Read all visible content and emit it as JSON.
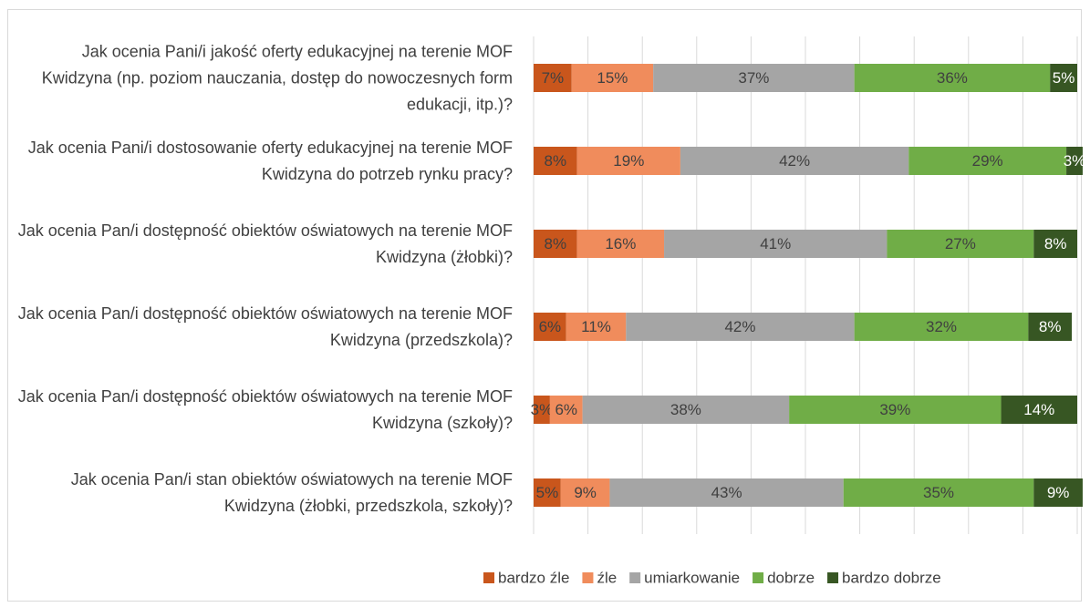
{
  "chart_data": {
    "type": "stacked-barh",
    "categories": [
      "Jak ocenia Pani/i jakość oferty edukacyjnej na terenie MOF Kwidzyna (np. poziom nauczania, dostęp do nowoczesnych form edukacji, itp.)?",
      "Jak ocenia Pani/i dostosowanie oferty edukacyjnej na terenie MOF Kwidzyna do potrzeb rynku pracy?",
      "Jak ocenia Pan/i dostępność obiektów oświatowych na terenie MOF Kwidzyna (żłobki)?",
      "Jak ocenia Pan/i dostępność obiektów oświatowych na terenie MOF Kwidzyna (przedszkola)?",
      "Jak ocenia Pan/i dostępność obiektów oświatowych na terenie MOF Kwidzyna (szkoły)?",
      "Jak ocenia Pan/i stan obiektów oświatowych na terenie MOF Kwidzyna (żłobki, przedszkola, szkoły)?"
    ],
    "series": [
      {
        "name": "bardzo źle",
        "color": "#c9561c",
        "values": [
          7,
          8,
          8,
          6,
          3,
          5
        ],
        "value_labels": [
          "7%",
          "8%",
          "8%",
          "6%",
          "3%",
          "5%"
        ]
      },
      {
        "name": "źle",
        "color": "#f08c5c",
        "values": [
          15,
          19,
          16,
          11,
          6,
          9
        ],
        "value_labels": [
          "15%",
          "19%",
          "16%",
          "11%",
          "6%",
          "9%"
        ]
      },
      {
        "name": "umiarkowanie",
        "color": "#a5a5a5",
        "values": [
          37,
          42,
          41,
          42,
          38,
          43
        ],
        "value_labels": [
          "37%",
          "42%",
          "41%",
          "42%",
          "38%",
          "43%"
        ]
      },
      {
        "name": "dobrze",
        "color": "#70ad47",
        "values": [
          36,
          29,
          27,
          32,
          39,
          35
        ],
        "value_labels": [
          "36%",
          "29%",
          "27%",
          "32%",
          "39%",
          "35%"
        ]
      },
      {
        "name": "bardzo dobrze",
        "color": "#375623",
        "values": [
          5,
          3,
          8,
          8,
          14,
          9
        ],
        "value_labels": [
          "5%",
          "3%",
          "8%",
          "8%",
          "14%",
          "9%"
        ]
      }
    ],
    "xlim": [
      0,
      100
    ],
    "xticks": [
      0,
      10,
      20,
      30,
      40,
      50,
      60,
      70,
      80,
      90,
      100
    ],
    "grid": true,
    "legend": "bottom"
  }
}
